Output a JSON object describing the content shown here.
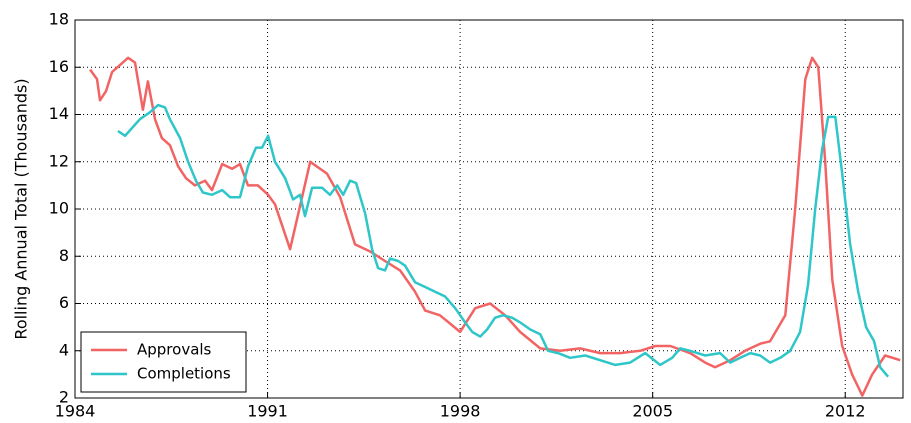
{
  "chart_data": {
    "type": "line",
    "ylabel": "Rolling Annual Total (Thousands)",
    "xlim": [
      1984,
      2014.1
    ],
    "xticks": [
      1984,
      1991,
      1998,
      2005,
      2012
    ],
    "ylim": [
      2,
      18
    ],
    "yticks": [
      2,
      4,
      6,
      8,
      10,
      12,
      14,
      16,
      18
    ],
    "grid": true,
    "legend": "lower left",
    "series": [
      {
        "name": "Approvals",
        "color": "#f26464",
        "x": [
          1984.55,
          1984.8,
          1984.91,
          1985.13,
          1985.35,
          1985.64,
          1985.93,
          1986.18,
          1986.47,
          1986.65,
          1986.91,
          1987.16,
          1987.45,
          1987.75,
          1988.04,
          1988.36,
          1988.73,
          1988.98,
          1989.35,
          1989.71,
          1990.0,
          1990.29,
          1990.65,
          1991.02,
          1991.27,
          1991.82,
          1992.55,
          1993.16,
          1993.64,
          1994.18,
          1994.73,
          1995.27,
          1995.82,
          1996.36,
          1996.73,
          1997.27,
          1998.0,
          1998.55,
          1999.09,
          1999.64,
          2000.18,
          2000.91,
          2001.64,
          2002.36,
          2003.09,
          2003.82,
          2004.55,
          2005.09,
          2005.64,
          2006.36,
          2006.91,
          2007.27,
          2007.82,
          2008.36,
          2008.91,
          2009.27,
          2009.82,
          2010.18,
          2010.55,
          2010.8,
          2011.02,
          2011.27,
          2011.53,
          2011.89,
          2012.25,
          2012.62,
          2012.98,
          2013.45,
          2014.0
        ],
        "values": [
          15.9,
          15.5,
          14.6,
          15.0,
          15.8,
          16.1,
          16.4,
          16.2,
          14.2,
          15.4,
          13.8,
          13.0,
          12.7,
          11.8,
          11.3,
          11.0,
          11.2,
          10.8,
          11.9,
          11.7,
          11.9,
          11.0,
          11.0,
          10.6,
          10.2,
          8.3,
          12.0,
          11.5,
          10.5,
          8.5,
          8.2,
          7.8,
          7.4,
          6.5,
          5.7,
          5.5,
          4.8,
          5.8,
          6.0,
          5.5,
          4.8,
          4.1,
          4.0,
          4.1,
          3.9,
          3.9,
          4.0,
          4.2,
          4.2,
          3.9,
          3.5,
          3.3,
          3.6,
          4.0,
          4.3,
          4.4,
          5.5,
          10.0,
          15.5,
          16.4,
          16.0,
          12.0,
          7.0,
          4.2,
          3.0,
          2.1,
          3.0,
          3.8,
          3.6
        ]
      },
      {
        "name": "Completions",
        "color": "#2ec6c8",
        "x": [
          1985.56,
          1985.82,
          1986.36,
          1986.73,
          1987.02,
          1987.27,
          1987.45,
          1987.82,
          1988.11,
          1988.4,
          1988.65,
          1988.98,
          1989.35,
          1989.64,
          1990.0,
          1990.29,
          1990.58,
          1990.8,
          1991.02,
          1991.27,
          1991.64,
          1991.93,
          1992.18,
          1992.36,
          1992.62,
          1992.98,
          1993.27,
          1993.53,
          1993.75,
          1994.0,
          1994.22,
          1994.55,
          1994.8,
          1995.02,
          1995.27,
          1995.45,
          1995.75,
          1996.0,
          1996.36,
          1996.73,
          1997.09,
          1997.45,
          1997.82,
          1998.18,
          1998.44,
          1998.73,
          1998.98,
          1999.27,
          1999.56,
          1999.89,
          2000.18,
          2000.55,
          2000.91,
          2001.2,
          2001.56,
          2002.0,
          2002.55,
          2003.09,
          2003.64,
          2004.18,
          2004.73,
          2005.27,
          2005.71,
          2006.0,
          2006.36,
          2006.91,
          2007.45,
          2007.82,
          2008.18,
          2008.55,
          2008.91,
          2009.27,
          2009.64,
          2010.0,
          2010.36,
          2010.65,
          2010.91,
          2011.16,
          2011.38,
          2011.64,
          2011.89,
          2012.18,
          2012.47,
          2012.76,
          2013.05,
          2013.27,
          2013.56
        ],
        "values": [
          13.3,
          13.1,
          13.8,
          14.1,
          14.4,
          14.3,
          13.8,
          13.0,
          12.0,
          11.2,
          10.7,
          10.6,
          10.8,
          10.5,
          10.5,
          11.8,
          12.6,
          12.6,
          13.1,
          12.0,
          11.3,
          10.4,
          10.6,
          9.7,
          10.9,
          10.9,
          10.6,
          11.0,
          10.6,
          11.2,
          11.1,
          9.8,
          8.3,
          7.5,
          7.4,
          7.9,
          7.8,
          7.6,
          6.9,
          6.7,
          6.5,
          6.3,
          5.8,
          5.2,
          4.8,
          4.6,
          4.9,
          5.4,
          5.5,
          5.4,
          5.2,
          4.9,
          4.7,
          4.0,
          3.9,
          3.7,
          3.8,
          3.6,
          3.4,
          3.5,
          3.9,
          3.4,
          3.7,
          4.1,
          4.0,
          3.8,
          3.9,
          3.5,
          3.7,
          3.9,
          3.8,
          3.5,
          3.7,
          4.0,
          4.8,
          6.8,
          10.0,
          12.5,
          13.9,
          13.9,
          11.5,
          8.5,
          6.5,
          5.0,
          4.4,
          3.3,
          2.9
        ]
      }
    ]
  }
}
